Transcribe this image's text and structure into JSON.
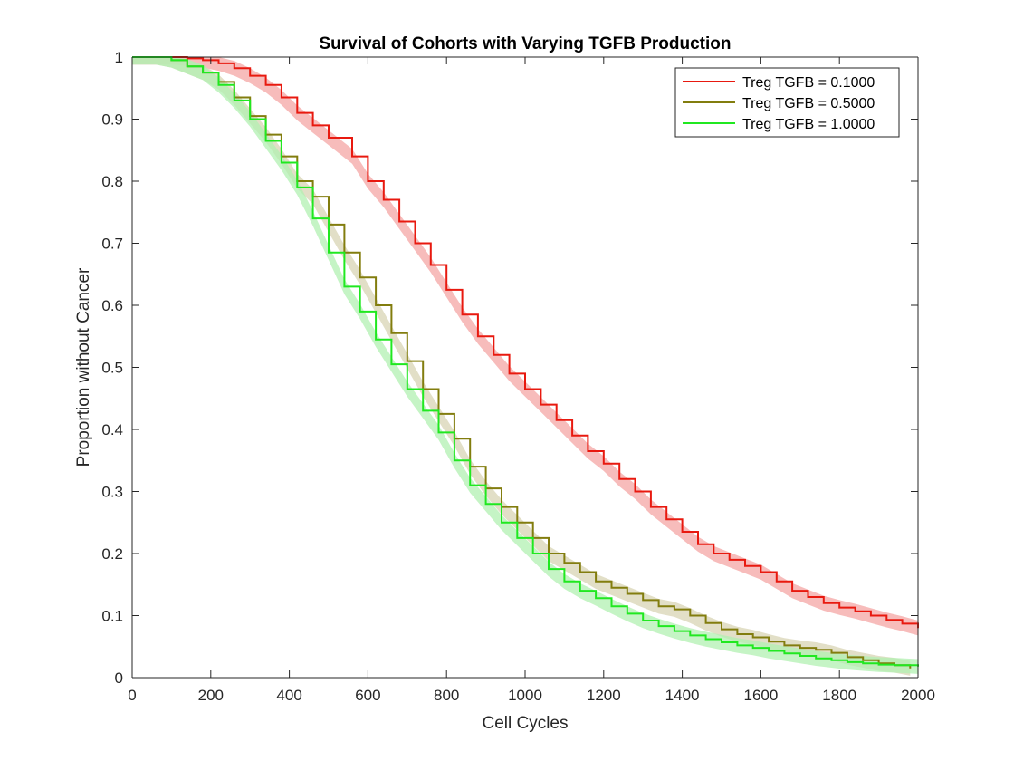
{
  "chart_data": {
    "type": "line",
    "title": "Survival of Cohorts with Varying TGFB Production",
    "xlabel": "Cell Cycles",
    "ylabel": "Proportion without Cancer",
    "xlim": [
      0,
      2000
    ],
    "ylim": [
      0,
      1
    ],
    "xticks": [
      0,
      200,
      400,
      600,
      800,
      1000,
      1200,
      1400,
      1600,
      1800,
      2000
    ],
    "xtick_labels": [
      "0",
      "200",
      "400",
      "600",
      "800",
      "1000",
      "1200",
      "1400",
      "1600",
      "1800",
      "2000"
    ],
    "yticks": [
      0,
      0.1,
      0.2,
      0.3,
      0.4,
      0.5,
      0.6,
      0.7,
      0.8,
      0.9,
      1
    ],
    "ytick_labels": [
      "0",
      "0.1",
      "0.2",
      "0.3",
      "0.4",
      "0.5",
      "0.6",
      "0.7",
      "0.8",
      "0.9",
      "1"
    ],
    "grid": false,
    "legend_position": "top-right",
    "band_halfwidth": 0.012,
    "series": [
      {
        "name": "Treg TGFB = 0.1000",
        "color": "#e8190f",
        "band_color": "#f4a6a4",
        "x": [
          0,
          60,
          100,
          140,
          180,
          220,
          260,
          300,
          340,
          380,
          420,
          460,
          500,
          560,
          600,
          640,
          680,
          720,
          760,
          800,
          840,
          880,
          920,
          960,
          1000,
          1040,
          1080,
          1120,
          1160,
          1200,
          1240,
          1280,
          1320,
          1360,
          1400,
          1440,
          1480,
          1520,
          1560,
          1600,
          1640,
          1680,
          1720,
          1760,
          1800,
          1840,
          1880,
          1920,
          1960,
          2000
        ],
        "y": [
          1,
          1,
          1,
          0.998,
          0.995,
          0.99,
          0.982,
          0.97,
          0.955,
          0.935,
          0.91,
          0.89,
          0.87,
          0.84,
          0.8,
          0.77,
          0.735,
          0.7,
          0.665,
          0.625,
          0.585,
          0.55,
          0.52,
          0.49,
          0.465,
          0.44,
          0.415,
          0.39,
          0.365,
          0.345,
          0.32,
          0.3,
          0.275,
          0.255,
          0.235,
          0.215,
          0.2,
          0.19,
          0.18,
          0.17,
          0.155,
          0.14,
          0.13,
          0.12,
          0.113,
          0.107,
          0.1,
          0.093,
          0.087,
          0.08
        ]
      },
      {
        "name": "Treg TGFB = 0.5000",
        "color": "#827d0e",
        "band_color": "#d8d4b4",
        "x": [
          0,
          60,
          100,
          140,
          180,
          220,
          260,
          300,
          340,
          380,
          420,
          460,
          500,
          540,
          580,
          620,
          660,
          700,
          740,
          780,
          820,
          860,
          900,
          940,
          980,
          1020,
          1060,
          1100,
          1140,
          1180,
          1220,
          1260,
          1300,
          1340,
          1380,
          1420,
          1460,
          1500,
          1540,
          1580,
          1620,
          1660,
          1700,
          1740,
          1780,
          1820,
          1860,
          1900,
          1940,
          1980
        ],
        "y": [
          1,
          1,
          0.995,
          0.985,
          0.975,
          0.96,
          0.935,
          0.905,
          0.875,
          0.84,
          0.8,
          0.775,
          0.73,
          0.685,
          0.645,
          0.6,
          0.555,
          0.51,
          0.465,
          0.425,
          0.385,
          0.34,
          0.305,
          0.275,
          0.25,
          0.225,
          0.2,
          0.185,
          0.17,
          0.155,
          0.145,
          0.135,
          0.125,
          0.115,
          0.11,
          0.1,
          0.088,
          0.078,
          0.07,
          0.065,
          0.058,
          0.052,
          0.048,
          0.045,
          0.04,
          0.033,
          0.028,
          0.023,
          0.02,
          0.015
        ]
      },
      {
        "name": "Treg TGFB = 1.0000",
        "color": "#20e820",
        "band_color": "#b2f0b2",
        "x": [
          0,
          60,
          100,
          140,
          180,
          220,
          260,
          300,
          340,
          380,
          420,
          460,
          500,
          540,
          580,
          620,
          660,
          700,
          740,
          780,
          820,
          860,
          900,
          940,
          980,
          1020,
          1060,
          1100,
          1140,
          1180,
          1220,
          1260,
          1300,
          1340,
          1380,
          1420,
          1460,
          1500,
          1540,
          1580,
          1620,
          1660,
          1700,
          1740,
          1780,
          1820,
          1860,
          1900,
          1940,
          2000
        ],
        "y": [
          1,
          1,
          0.995,
          0.985,
          0.975,
          0.955,
          0.93,
          0.9,
          0.865,
          0.83,
          0.79,
          0.74,
          0.685,
          0.63,
          0.59,
          0.545,
          0.505,
          0.465,
          0.43,
          0.395,
          0.35,
          0.31,
          0.28,
          0.25,
          0.225,
          0.2,
          0.175,
          0.155,
          0.14,
          0.128,
          0.115,
          0.103,
          0.092,
          0.083,
          0.075,
          0.068,
          0.062,
          0.057,
          0.052,
          0.048,
          0.043,
          0.039,
          0.035,
          0.031,
          0.028,
          0.025,
          0.023,
          0.021,
          0.02,
          0.018
        ]
      }
    ]
  }
}
